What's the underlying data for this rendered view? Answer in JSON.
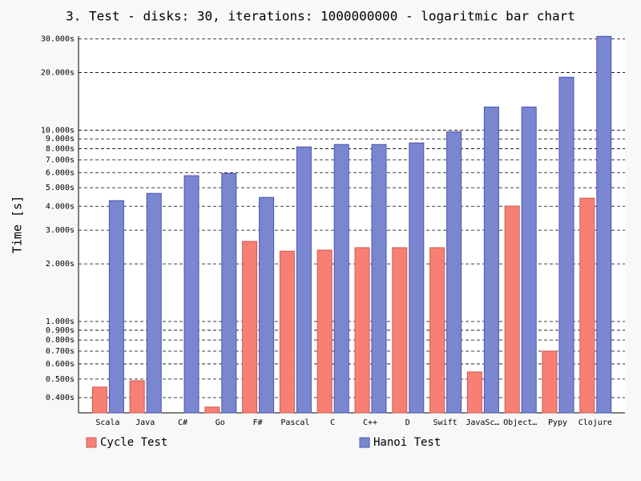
{
  "chart_data": {
    "type": "bar",
    "title": "3. Test - disks: 30, iterations: 1000000000 - logaritmic bar chart",
    "y_label": "Time [s]",
    "categories": [
      "Scala",
      "Java",
      "C#",
      "Go",
      "F#",
      "Pascal",
      "C",
      "C++",
      "D",
      "Swift",
      "JavaSc…",
      "Object…",
      "Pypy",
      "Clojure"
    ],
    "series": [
      {
        "name": "Cycle Test",
        "color": "#f77f73",
        "values": [
          0.454,
          0.49,
          null,
          0.357,
          2.62,
          2.33,
          2.36,
          2.43,
          2.43,
          2.43,
          0.545,
          4.01,
          0.7,
          4.41
        ]
      },
      {
        "name": "Hanoi Test",
        "color": "#7b86d0",
        "values": [
          4.28,
          4.67,
          5.78,
          5.94,
          4.45,
          8.17,
          8.41,
          8.41,
          8.57,
          9.81,
          13.2,
          13.2,
          18.9,
          30.9
        ]
      }
    ],
    "ylim": [
      0.333,
      31
    ],
    "y_log": true,
    "grid": true,
    "yticks": [
      {
        "value": 0.4,
        "label": "0.400s"
      },
      {
        "value": 0.5,
        "label": "0.500s"
      },
      {
        "value": 0.6,
        "label": "0.600s"
      },
      {
        "value": 0.7,
        "label": "0.700s"
      },
      {
        "value": 0.8,
        "label": "0.800s"
      },
      {
        "value": 0.9,
        "label": "0.900s"
      },
      {
        "value": 1,
        "label": "1.000s"
      },
      {
        "value": 2,
        "label": "2.000s"
      },
      {
        "value": 3,
        "label": "3.000s"
      },
      {
        "value": 4,
        "label": "4.000s"
      },
      {
        "value": 5,
        "label": "5.000s"
      },
      {
        "value": 6,
        "label": "6.000s"
      },
      {
        "value": 7,
        "label": "7.000s"
      },
      {
        "value": 8,
        "label": "8.000s"
      },
      {
        "value": 9,
        "label": "9.000s"
      },
      {
        "value": 10,
        "label": "10.000s"
      },
      {
        "value": 20,
        "label": "20.000s"
      },
      {
        "value": 30,
        "label": "30.000s"
      }
    ]
  }
}
